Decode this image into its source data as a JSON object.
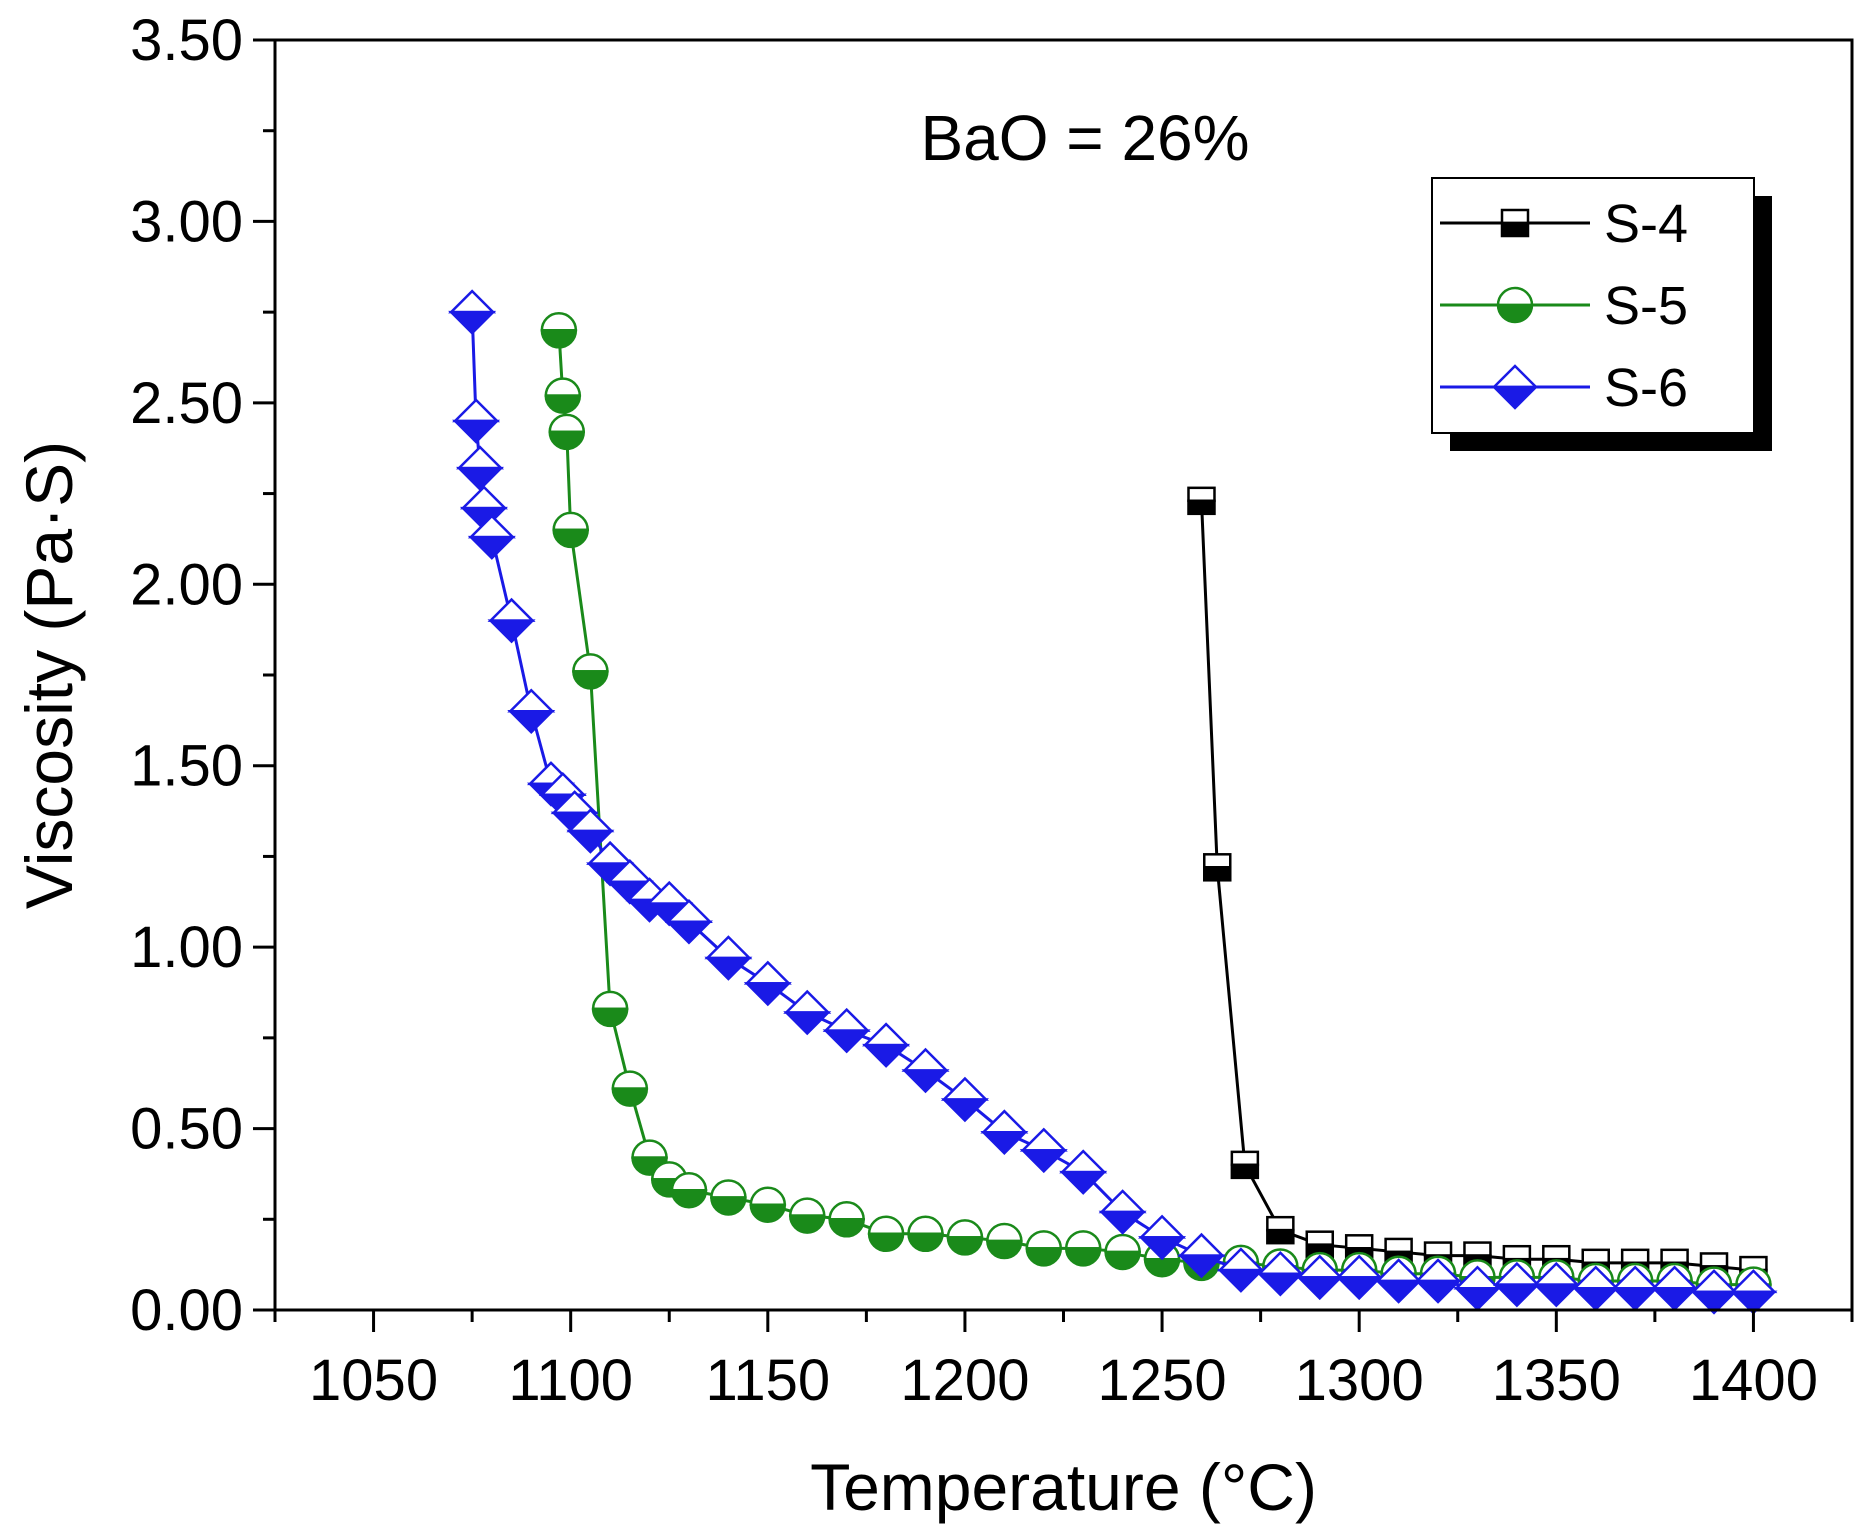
{
  "chart_data": {
    "type": "line",
    "title": "",
    "annotation": "BaO = 26%",
    "xlabel": "Temperature (°C)",
    "ylabel": "Viscosity (Pa·S)",
    "xlim": [
      1025,
      1425
    ],
    "ylim": [
      0,
      3.5
    ],
    "xticks": [
      1050,
      1100,
      1150,
      1200,
      1250,
      1300,
      1350,
      1400
    ],
    "xtick_labels": [
      "1050",
      "1100",
      "1150",
      "1200",
      "1250",
      "1300",
      "1350",
      "1400"
    ],
    "yticks": [
      0,
      0.5,
      1.0,
      1.5,
      2.0,
      2.5,
      3.0,
      3.5
    ],
    "ytick_labels": [
      "0.00",
      "0.50",
      "1.00",
      "1.50",
      "2.00",
      "2.50",
      "3.00",
      "3.50"
    ],
    "grid": false,
    "legend_position": "top-right",
    "series": [
      {
        "name": "S-4",
        "color": "#000000",
        "marker": "square",
        "x": [
          1260,
          1264,
          1271,
          1280,
          1290,
          1300,
          1310,
          1320,
          1330,
          1340,
          1350,
          1360,
          1370,
          1380,
          1390,
          1400
        ],
        "y": [
          2.23,
          1.22,
          0.4,
          0.22,
          0.18,
          0.17,
          0.16,
          0.15,
          0.15,
          0.14,
          0.14,
          0.13,
          0.13,
          0.13,
          0.12,
          0.11
        ]
      },
      {
        "name": "S-5",
        "color": "#1a8a1a",
        "marker": "circle",
        "x": [
          1097,
          1098,
          1099,
          1100,
          1105,
          1110,
          1115,
          1120,
          1125,
          1130,
          1140,
          1150,
          1160,
          1170,
          1180,
          1190,
          1200,
          1210,
          1220,
          1230,
          1240,
          1250,
          1260,
          1270,
          1280,
          1290,
          1300,
          1310,
          1320,
          1330,
          1340,
          1350,
          1360,
          1370,
          1380,
          1390,
          1400
        ],
        "y": [
          2.7,
          2.52,
          2.42,
          2.15,
          1.76,
          0.83,
          0.61,
          0.42,
          0.36,
          0.33,
          0.31,
          0.29,
          0.26,
          0.25,
          0.21,
          0.21,
          0.2,
          0.19,
          0.17,
          0.17,
          0.16,
          0.14,
          0.13,
          0.13,
          0.12,
          0.11,
          0.11,
          0.1,
          0.1,
          0.09,
          0.09,
          0.09,
          0.08,
          0.08,
          0.08,
          0.07,
          0.07
        ]
      },
      {
        "name": "S-6",
        "color": "#1a1ae6",
        "marker": "diamond",
        "x": [
          1075,
          1076,
          1077,
          1078,
          1080,
          1085,
          1090,
          1095,
          1098,
          1101,
          1105,
          1110,
          1115,
          1120,
          1125,
          1130,
          1140,
          1150,
          1160,
          1170,
          1180,
          1190,
          1200,
          1210,
          1220,
          1230,
          1240,
          1250,
          1260,
          1270,
          1280,
          1290,
          1300,
          1310,
          1320,
          1330,
          1340,
          1350,
          1360,
          1370,
          1380,
          1390,
          1400
        ],
        "y": [
          2.75,
          2.45,
          2.32,
          2.21,
          2.13,
          1.9,
          1.65,
          1.45,
          1.42,
          1.37,
          1.32,
          1.23,
          1.18,
          1.13,
          1.12,
          1.07,
          0.97,
          0.9,
          0.82,
          0.77,
          0.73,
          0.66,
          0.58,
          0.49,
          0.44,
          0.38,
          0.27,
          0.2,
          0.15,
          0.11,
          0.1,
          0.09,
          0.09,
          0.08,
          0.08,
          0.06,
          0.07,
          0.07,
          0.06,
          0.06,
          0.06,
          0.05,
          0.05
        ]
      }
    ]
  }
}
